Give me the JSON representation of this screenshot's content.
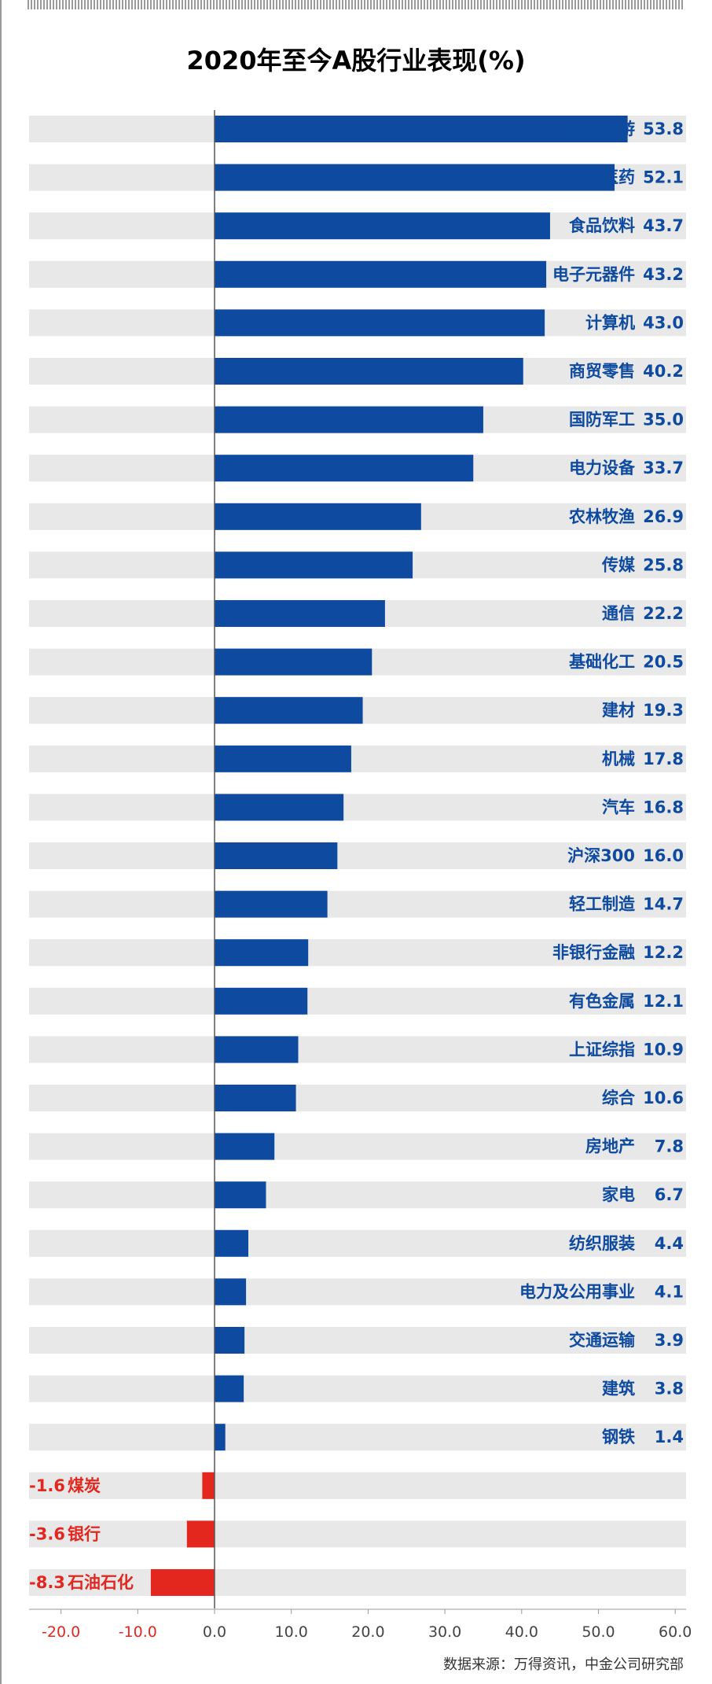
{
  "chart_data": {
    "type": "bar",
    "orientation": "horizontal",
    "title": "2020年至今A股行业表现(%)",
    "categories": [
      "餐饮旅游",
      "医药",
      "食品饮料",
      "电子元器件",
      "计算机",
      "商贸零售",
      "国防军工",
      "电力设备",
      "农林牧渔",
      "传媒",
      "通信",
      "基础化工",
      "建材",
      "机械",
      "汽车",
      "沪深300",
      "轻工制造",
      "非银行金融",
      "有色金属",
      "上证综指",
      "综合",
      "房地产",
      "家电",
      "纺织服装",
      "电力及公用事业",
      "交通运输",
      "建筑",
      "钢铁",
      "煤炭",
      "银行",
      "石油石化"
    ],
    "values": [
      53.8,
      52.1,
      43.7,
      43.2,
      43.0,
      40.2,
      35.0,
      33.7,
      26.9,
      25.8,
      22.2,
      20.5,
      19.3,
      17.8,
      16.8,
      16.0,
      14.7,
      12.2,
      12.1,
      10.9,
      10.6,
      7.8,
      6.7,
      4.4,
      4.1,
      3.9,
      3.8,
      1.4,
      -1.6,
      -3.6,
      -8.3
    ],
    "value_labels": [
      "53.8",
      "52.1",
      "43.7",
      "43.2",
      "43.0",
      "40.2",
      "35.0",
      "33.7",
      "26.9",
      "25.8",
      "22.2",
      "20.5",
      "19.3",
      "17.8",
      "16.8",
      "16.0",
      "14.7",
      "12.2",
      "12.1",
      "10.9",
      "10.6",
      "7.8",
      "6.7",
      "4.4",
      "4.1",
      "3.9",
      "3.8",
      "1.4",
      "-1.6",
      "-3.6",
      "-8.3"
    ],
    "xlim": [
      -20,
      60
    ],
    "xticks": [
      "-20.0",
      "-10.0",
      "0.0",
      "10.0",
      "20.0",
      "30.0",
      "40.0",
      "50.0",
      "60.0"
    ],
    "grid": false,
    "colors": {
      "positive": "#0d4aa0",
      "negative": "#e3271f",
      "track": "#e8e8e8",
      "axis": "#555555"
    }
  },
  "source": "数据来源：万得资讯，中金公司研究部"
}
